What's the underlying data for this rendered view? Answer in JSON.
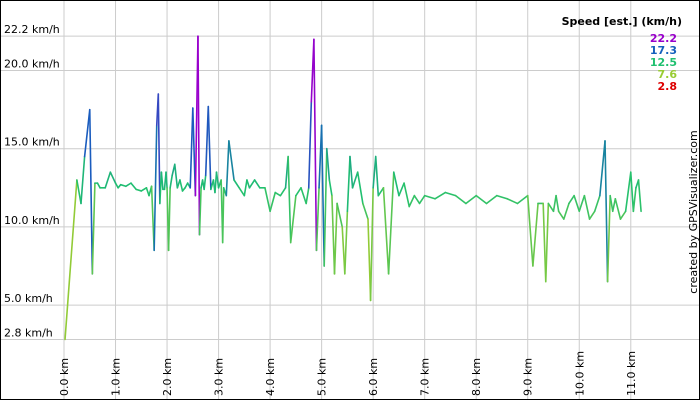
{
  "chart_data": {
    "type": "line",
    "title": "",
    "xlabel": "",
    "ylabel": "",
    "xlim": [
      0,
      11.8
    ],
    "ylim": [
      2,
      24
    ],
    "grid": true,
    "x_ticks": [
      0,
      1,
      2,
      3,
      4,
      5,
      6,
      7,
      8,
      9,
      10,
      11
    ],
    "x_tick_labels": [
      "0.0 km",
      "1.0 km",
      "2.0 km",
      "3.0 km",
      "4.0 km",
      "5.0 km",
      "6.0 km",
      "7.0 km",
      "8.0 km",
      "9.0 km",
      "10.0 km",
      "11.0 km"
    ],
    "y_ticks": [
      2.8,
      5.0,
      10.0,
      15.0,
      20.0,
      22.2
    ],
    "y_tick_labels": [
      "2.8 km/h",
      "5.0 km/h",
      "10.0 km/h",
      "15.0 km/h",
      "20.0 km/h",
      "22.2 km/h"
    ],
    "legend": {
      "title": "Speed [est.] (km/h)",
      "placement": "top-right",
      "entries": [
        {
          "label": "22.2",
          "value": 22.2,
          "color": "#9900cc"
        },
        {
          "label": "17.3",
          "value": 17.3,
          "color": "#1560bd"
        },
        {
          "label": "12.5",
          "value": 12.5,
          "color": "#20c070"
        },
        {
          "label": "7.6",
          "value": 7.6,
          "color": "#99cc33"
        },
        {
          "label": "2.8",
          "value": 2.8,
          "color": "#dd0000"
        }
      ]
    },
    "credit": "created by GPSVisualizer.com",
    "series": [
      {
        "x": [
          0.02,
          0.25,
          0.33,
          0.4,
          0.5,
          0.55,
          0.6,
          0.65,
          0.7,
          0.8,
          0.9,
          1.0,
          1.05,
          1.1,
          1.2,
          1.3,
          1.4,
          1.5,
          1.6,
          1.65,
          1.7,
          1.75,
          1.8,
          1.83,
          1.86,
          1.89,
          1.92,
          1.95,
          1.98,
          2.0,
          2.03,
          2.06,
          2.1,
          2.15,
          2.2,
          2.25,
          2.3,
          2.35,
          2.4,
          2.45,
          2.5,
          2.55,
          2.6,
          2.63,
          2.66,
          2.69,
          2.72,
          2.75,
          2.8,
          2.85,
          2.9,
          2.93,
          2.96,
          3.0,
          3.05,
          3.08,
          3.1,
          3.15,
          3.2,
          3.3,
          3.4,
          3.5,
          3.55,
          3.6,
          3.7,
          3.8,
          3.9,
          4.0,
          4.1,
          4.2,
          4.3,
          4.35,
          4.4,
          4.5,
          4.6,
          4.7,
          4.75,
          4.8,
          4.85,
          4.9,
          4.95,
          5.0,
          5.05,
          5.1,
          5.15,
          5.2,
          5.25,
          5.3,
          5.4,
          5.45,
          5.5,
          5.55,
          5.6,
          5.7,
          5.8,
          5.9,
          5.95,
          6.0,
          6.05,
          6.1,
          6.2,
          6.3,
          6.4,
          6.5,
          6.6,
          6.7,
          6.8,
          6.9,
          7.0,
          7.2,
          7.4,
          7.6,
          7.8,
          8.0,
          8.2,
          8.4,
          8.6,
          8.8,
          9.0,
          9.1,
          9.2,
          9.3,
          9.35,
          9.4,
          9.5,
          9.55,
          9.6,
          9.7,
          9.8,
          9.9,
          10.0,
          10.1,
          10.2,
          10.3,
          10.4,
          10.5,
          10.55,
          10.6,
          10.65,
          10.7,
          10.8,
          10.9,
          11.0,
          11.05,
          11.1,
          11.15,
          11.2
        ],
        "y": [
          2.8,
          13.0,
          11.5,
          14.5,
          17.5,
          7.0,
          12.8,
          12.8,
          12.5,
          12.5,
          13.5,
          12.8,
          12.5,
          12.7,
          12.6,
          12.8,
          12.4,
          12.3,
          12.5,
          12.0,
          12.6,
          8.5,
          16.5,
          18.5,
          11.5,
          13.5,
          12.4,
          12.4,
          13.5,
          12.5,
          8.5,
          12.5,
          13.3,
          14.0,
          12.5,
          13.0,
          12.3,
          12.5,
          12.8,
          12.5,
          17.6,
          12.0,
          22.2,
          9.5,
          12.5,
          13.0,
          12.4,
          13.3,
          17.7,
          12.4,
          13.0,
          12.2,
          13.5,
          12.5,
          13.0,
          9.0,
          12.5,
          12.0,
          15.5,
          13.0,
          12.5,
          12.0,
          13.0,
          12.5,
          13.0,
          12.5,
          12.5,
          11.0,
          12.2,
          12.0,
          12.5,
          14.5,
          9.0,
          12.0,
          12.5,
          11.5,
          12.5,
          18.0,
          22.0,
          8.5,
          12.5,
          16.5,
          7.5,
          15.0,
          13.0,
          12.0,
          7.0,
          11.5,
          10.0,
          7.0,
          11.0,
          14.5,
          12.5,
          13.5,
          11.5,
          10.5,
          5.3,
          12.5,
          14.5,
          12.0,
          12.5,
          7.0,
          13.5,
          12.0,
          12.8,
          11.3,
          12.0,
          11.5,
          12.0,
          11.8,
          12.2,
          12.0,
          11.5,
          12.0,
          11.5,
          12.0,
          11.8,
          11.5,
          12.0,
          7.5,
          11.5,
          11.5,
          6.5,
          11.5,
          11.0,
          12.0,
          11.0,
          10.5,
          11.5,
          12.0,
          11.0,
          12.0,
          10.5,
          11.0,
          12.0,
          15.5,
          6.5,
          12.0,
          11.0,
          11.8,
          10.5,
          11.0,
          13.5,
          11.0,
          12.5,
          13.0,
          11.0
        ]
      }
    ]
  }
}
